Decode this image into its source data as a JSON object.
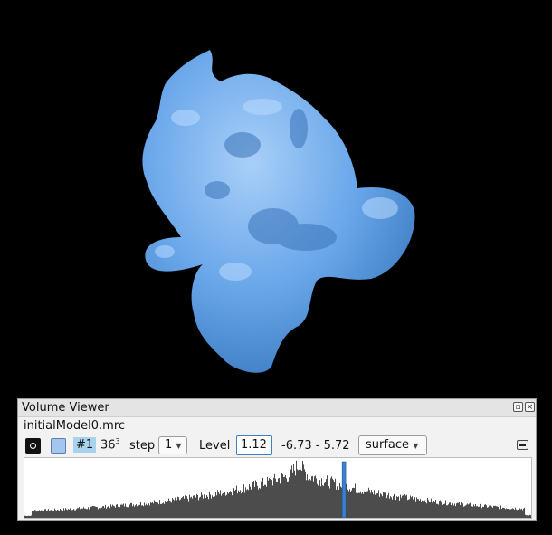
{
  "viewport": {
    "surface_color": "#6aa7ea",
    "background": "#000000"
  },
  "panel": {
    "title": "Volume Viewer",
    "float_icon": "float-icon",
    "close_icon": "close-icon"
  },
  "volume": {
    "filename": "initialModel0.mrc",
    "model_id": "#1",
    "grid_size": "36",
    "grid_exp": "3",
    "step_label": "step",
    "step_value": "1",
    "level_label": "Level",
    "level_value": "1.12",
    "range": "-6.73 - 5.72",
    "style_value": "surface",
    "color": "#a3c6ee"
  },
  "histogram": {
    "min": -6.73,
    "max": 5.72,
    "peak_at": 0.0,
    "threshold": 1.12,
    "threshold_color": "#3a7fd1"
  }
}
